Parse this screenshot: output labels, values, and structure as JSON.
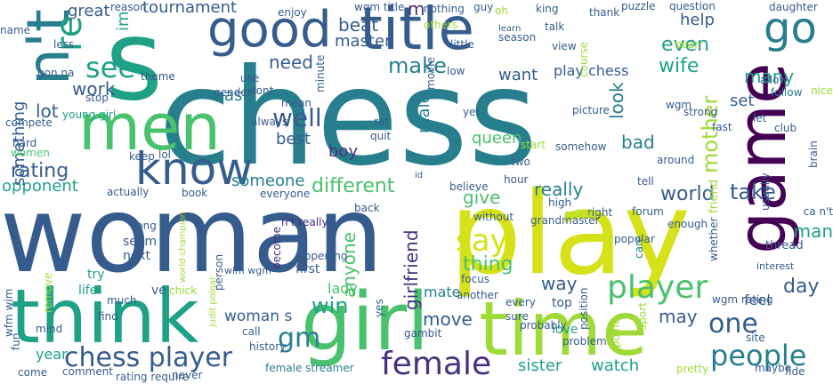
{
  "palette": {
    "c1": "#440154",
    "c2": "#46327e",
    "c3": "#365c8d",
    "c4": "#277f8e",
    "c5": "#1fa187",
    "c6": "#4ac16d",
    "c7": "#a0da39",
    "c8": "#d5e21a"
  },
  "words": [
    {
      "t": "chess",
      "c": "c4"
    },
    {
      "t": "woman",
      "c": "c3"
    },
    {
      "t": "play",
      "c": "c8"
    },
    {
      "t": "s",
      "c": "c5"
    },
    {
      "t": "girl",
      "c": "c6"
    },
    {
      "t": "think",
      "c": "c5"
    },
    {
      "t": "time",
      "c": "c7"
    },
    {
      "t": "title",
      "c": "c3"
    },
    {
      "t": "men",
      "c": "c6"
    },
    {
      "t": "game",
      "c": "c1"
    },
    {
      "t": "good",
      "c": "c3"
    },
    {
      "t": "n't",
      "c": "c4"
    },
    {
      "t": "know",
      "c": "c3"
    },
    {
      "t": "go",
      "c": "c4"
    },
    {
      "t": "re",
      "c": "c5"
    },
    {
      "t": "female",
      "c": "c2"
    },
    {
      "t": "player",
      "c": "c6"
    },
    {
      "t": "people",
      "c": "c4"
    },
    {
      "t": "chess player",
      "c": "c3"
    },
    {
      "t": "one",
      "c": "c3"
    },
    {
      "t": "say",
      "c": "c8"
    },
    {
      "t": "gm",
      "c": "c4"
    },
    {
      "t": "see",
      "c": "c5"
    },
    {
      "t": "win",
      "c": "c5"
    },
    {
      "t": "mother",
      "c": "c7"
    },
    {
      "t": "day",
      "c": "c3"
    },
    {
      "t": "tournament",
      "c": "c3"
    },
    {
      "t": "well",
      "c": "c3"
    },
    {
      "t": "make",
      "c": "c4"
    },
    {
      "t": "work",
      "c": "c3"
    },
    {
      "t": "beat",
      "c": "c3"
    },
    {
      "t": "different",
      "c": "c6"
    },
    {
      "t": "even",
      "c": "c5"
    },
    {
      "t": "wife",
      "c": "c5"
    },
    {
      "t": "girlfriend",
      "c": "c2"
    },
    {
      "t": "woman s",
      "c": "c3"
    },
    {
      "t": "sister",
      "c": "c5"
    },
    {
      "t": "watch",
      "c": "c5"
    },
    {
      "t": "take",
      "c": "c3"
    },
    {
      "t": "world",
      "c": "c3"
    },
    {
      "t": "rating",
      "c": "c3"
    },
    {
      "t": "many",
      "c": "c5"
    },
    {
      "t": "give",
      "c": "c6"
    },
    {
      "t": "thing",
      "c": "c6"
    },
    {
      "t": "way",
      "c": "c3"
    },
    {
      "t": "move",
      "c": "c3"
    },
    {
      "t": "may",
      "c": "c3"
    },
    {
      "t": "man",
      "c": "c5"
    },
    {
      "t": "queen",
      "c": "c6"
    },
    {
      "t": "bad",
      "c": "c4"
    },
    {
      "t": "look",
      "c": "c4"
    },
    {
      "t": "boy",
      "c": "c2"
    },
    {
      "t": "best",
      "c": "c3"
    },
    {
      "t": "lot",
      "c": "c3"
    },
    {
      "t": "need",
      "c": "c3"
    },
    {
      "t": "master",
      "c": "c3"
    },
    {
      "t": "want",
      "c": "c3"
    },
    {
      "t": "play chess",
      "c": "c3"
    },
    {
      "t": "great",
      "c": "c3"
    },
    {
      "t": "ask",
      "c": "c4"
    },
    {
      "t": "m",
      "c": "c2"
    },
    {
      "t": "im",
      "c": "c5"
    },
    {
      "t": "someone",
      "c": "c4"
    },
    {
      "t": "really",
      "c": "c4"
    },
    {
      "t": "anyone",
      "c": "c6"
    },
    {
      "t": "male",
      "c": "c4"
    },
    {
      "t": "opponent",
      "c": "c5"
    },
    {
      "t": "something",
      "c": "c3"
    },
    {
      "t": "help",
      "c": "c3"
    },
    {
      "t": "set",
      "c": "c3"
    },
    {
      "t": "feel",
      "c": "c3"
    },
    {
      "t": "year",
      "c": "c5"
    },
    {
      "t": "sport",
      "c": "c7"
    },
    {
      "t": "love",
      "c": "c5"
    },
    {
      "t": "top",
      "c": "c3"
    },
    {
      "t": "female streamer",
      "c": "c4"
    },
    {
      "t": "mate",
      "c": "c4"
    },
    {
      "t": "lady",
      "c": "c6"
    },
    {
      "t": "first",
      "c": "c3"
    },
    {
      "t": "wim wgm",
      "c": "c3"
    },
    {
      "t": "life",
      "c": "c5"
    },
    {
      "t": "ve",
      "c": "c3"
    },
    {
      "t": "mind",
      "c": "c3"
    },
    {
      "t": "find",
      "c": "c3"
    },
    {
      "t": "fun",
      "c": "c3"
    },
    {
      "t": "try",
      "c": "c5"
    },
    {
      "t": "seem",
      "c": "c3"
    },
    {
      "t": "next",
      "c": "c3"
    },
    {
      "t": "long",
      "c": "c3"
    },
    {
      "t": "book",
      "c": "c3"
    },
    {
      "t": "become",
      "c": "c2"
    },
    {
      "t": "n't really",
      "c": "c2"
    },
    {
      "t": "without",
      "c": "c3"
    },
    {
      "t": "believe",
      "c": "c3"
    },
    {
      "t": "two",
      "c": "c3"
    },
    {
      "t": "start",
      "c": "c7"
    },
    {
      "t": "world champion",
      "c": "c7"
    },
    {
      "t": "judit polgar",
      "c": "c7"
    },
    {
      "t": "grandmaster",
      "c": "c3"
    },
    {
      "t": "enough",
      "c": "c3"
    },
    {
      "t": "care",
      "c": "c4"
    },
    {
      "t": "thread",
      "c": "c3"
    },
    {
      "t": "interest",
      "c": "c3"
    },
    {
      "t": "friend",
      "c": "c7"
    },
    {
      "t": "puzzle",
      "c": "c3"
    },
    {
      "t": "question",
      "c": "c3"
    },
    {
      "t": "daughter",
      "c": "c3"
    },
    {
      "t": "allow",
      "c": "c3"
    },
    {
      "t": "follow",
      "c": "c4"
    },
    {
      "t": "strong",
      "c": "c3"
    },
    {
      "t": "wgm",
      "c": "c3"
    },
    {
      "t": "picture",
      "c": "c3"
    },
    {
      "t": "yet",
      "c": "c3"
    },
    {
      "t": "rat",
      "c": "c3"
    },
    {
      "t": "quit",
      "c": "c3"
    },
    {
      "t": "low",
      "c": "c3"
    },
    {
      "t": "little",
      "c": "c3"
    },
    {
      "t": "movie",
      "c": "c3"
    },
    {
      "t": "season",
      "c": "c3"
    },
    {
      "t": "king",
      "c": "c3"
    },
    {
      "t": "thank",
      "c": "c3"
    },
    {
      "t": "guy",
      "c": "c3"
    },
    {
      "t": "learn",
      "c": "c3"
    },
    {
      "t": "talk",
      "c": "c3"
    },
    {
      "t": "others",
      "c": "c7"
    },
    {
      "t": "wgm title",
      "c": "c3"
    },
    {
      "t": "enjoy",
      "c": "c3"
    },
    {
      "t": "reason",
      "c": "c3"
    },
    {
      "t": "name",
      "c": "c3"
    },
    {
      "t": "less",
      "c": "c3"
    },
    {
      "t": "gon na",
      "c": "c3"
    },
    {
      "t": "theme",
      "c": "c3"
    },
    {
      "t": "use",
      "c": "c3"
    },
    {
      "t": "dont",
      "c": "c3"
    },
    {
      "t": "minute",
      "c": "c3"
    },
    {
      "t": "gender",
      "c": "c3"
    },
    {
      "t": "stop",
      "c": "c3"
    },
    {
      "t": "young girl",
      "c": "c5"
    },
    {
      "t": "compete",
      "c": "c3"
    },
    {
      "t": "hard",
      "c": "c3"
    },
    {
      "t": "women",
      "c": "c6"
    },
    {
      "t": "keep",
      "c": "c3"
    },
    {
      "t": "lol",
      "c": "c3"
    },
    {
      "t": "actually",
      "c": "c3"
    },
    {
      "t": "everyone",
      "c": "c3"
    },
    {
      "t": "always",
      "c": "c3"
    },
    {
      "t": "mean",
      "c": "c3"
    },
    {
      "t": "back",
      "c": "c3"
    },
    {
      "t": "hour",
      "c": "c3"
    },
    {
      "t": "high",
      "c": "c3"
    },
    {
      "t": "right",
      "c": "c3"
    },
    {
      "t": "polgar",
      "c": "c7"
    },
    {
      "t": "forum",
      "c": "c3"
    },
    {
      "t": "popular",
      "c": "c3"
    },
    {
      "t": "whether",
      "c": "c3"
    },
    {
      "t": "usually",
      "c": "c3"
    },
    {
      "t": "ca n't",
      "c": "c3"
    },
    {
      "t": "brain",
      "c": "c3"
    },
    {
      "t": "fast",
      "c": "c3"
    },
    {
      "t": "let",
      "c": "c3"
    },
    {
      "t": "club",
      "c": "c3"
    },
    {
      "t": "around",
      "c": "c3"
    },
    {
      "t": "somehow",
      "c": "c3"
    },
    {
      "t": "tell",
      "c": "c3"
    },
    {
      "t": "wfm wim",
      "c": "c3"
    },
    {
      "t": "rating require",
      "c": "c3"
    },
    {
      "t": "comment",
      "c": "c3"
    },
    {
      "t": "come",
      "c": "c3"
    },
    {
      "t": "never",
      "c": "c3"
    },
    {
      "t": "history",
      "c": "c3"
    },
    {
      "t": "call",
      "c": "c3"
    },
    {
      "t": "gambit",
      "c": "c3"
    },
    {
      "t": "probably",
      "c": "c3"
    },
    {
      "t": "sure",
      "c": "c3"
    },
    {
      "t": "every",
      "c": "c3"
    },
    {
      "t": "yes",
      "c": "c3"
    },
    {
      "t": "another",
      "c": "c3"
    },
    {
      "t": "focus",
      "c": "c3"
    },
    {
      "t": "position",
      "c": "c3"
    },
    {
      "t": "wgm rating",
      "c": "c3"
    },
    {
      "t": "site",
      "c": "c3"
    },
    {
      "t": "pretty",
      "c": "c7"
    },
    {
      "t": "maybe",
      "c": "c3"
    },
    {
      "t": "fide",
      "c": "c3"
    },
    {
      "t": "problem",
      "c": "c3"
    },
    {
      "t": "point",
      "c": "c7"
    },
    {
      "t": "chick",
      "c": "c7"
    },
    {
      "t": "person",
      "c": "c3"
    },
    {
      "t": "opening",
      "c": "c3"
    },
    {
      "t": "remove",
      "c": "c7"
    },
    {
      "t": "much",
      "c": "c3"
    },
    {
      "t": "id",
      "c": "c3"
    },
    {
      "t": "oh",
      "c": "c7"
    },
    {
      "t": "nothing",
      "c": "c3"
    },
    {
      "t": "bear",
      "c": "c7"
    },
    {
      "t": "course",
      "c": "c7"
    },
    {
      "t": "view",
      "c": "c3"
    },
    {
      "t": "nice",
      "c": "c7"
    },
    {
      "t": "d",
      "c": "c3"
    }
  ]
}
